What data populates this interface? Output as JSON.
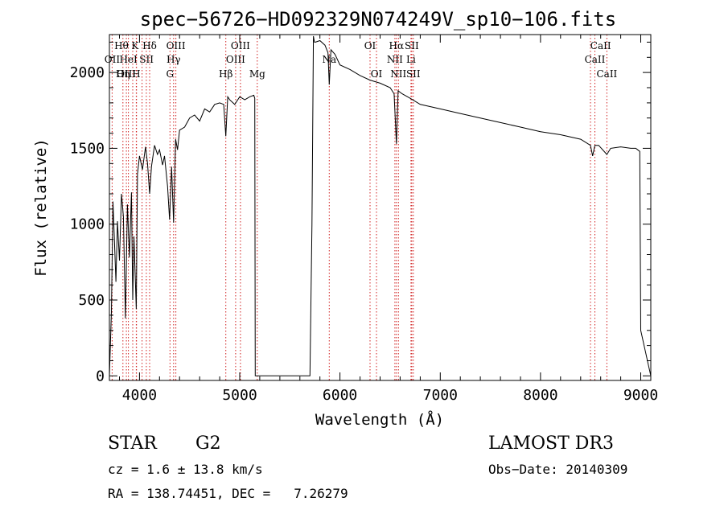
{
  "chart_data": {
    "type": "line",
    "title": "spec−56726−HD092329N074249V_sp10−106.fits",
    "xlabel": "Wavelength (Å)",
    "ylabel": "Flux (relative)",
    "xlim": [
      3700,
      9100
    ],
    "ylim": [
      -30,
      2250
    ],
    "xticks": [
      4000,
      5000,
      6000,
      7000,
      8000,
      9000
    ],
    "yticks": [
      0,
      500,
      1000,
      1500,
      2000
    ],
    "series": [
      {
        "name": "flux",
        "x": [
          3700,
          3720,
          3735,
          3750,
          3765,
          3780,
          3800,
          3820,
          3840,
          3860,
          3880,
          3900,
          3920,
          3933,
          3945,
          3968,
          3980,
          4000,
          4030,
          4060,
          4080,
          4101,
          4120,
          4150,
          4180,
          4200,
          4230,
          4250,
          4280,
          4300,
          4320,
          4340,
          4360,
          4380,
          4400,
          4450,
          4500,
          4550,
          4600,
          4650,
          4700,
          4750,
          4800,
          4840,
          4861,
          4880,
          4900,
          4950,
          5000,
          5050,
          5100,
          5140,
          5150,
          5155,
          5160,
          5165,
          5170,
          5175,
          5180,
          5200,
          5300,
          5500,
          5700,
          5720,
          5735,
          5745,
          5755,
          5800,
          5850,
          5880,
          5893,
          5910,
          5950,
          6000,
          6100,
          6200,
          6300,
          6400,
          6500,
          6540,
          6563,
          6580,
          6620,
          6700,
          6800,
          7000,
          7200,
          7400,
          7600,
          7800,
          8000,
          8200,
          8400,
          8498,
          8520,
          8542,
          8580,
          8662,
          8700,
          8800,
          8900,
          8950,
          8970,
          8990,
          9000,
          9100
        ],
        "values": [
          0,
          420,
          1150,
          900,
          620,
          1020,
          760,
          1200,
          1050,
          380,
          1130,
          780,
          1210,
          500,
          920,
          440,
          1330,
          1450,
          1360,
          1510,
          1400,
          1200,
          1380,
          1520,
          1460,
          1490,
          1390,
          1450,
          1250,
          1030,
          1380,
          1010,
          1560,
          1490,
          1620,
          1640,
          1700,
          1720,
          1680,
          1760,
          1740,
          1790,
          1800,
          1790,
          1580,
          1840,
          1820,
          1790,
          1840,
          1820,
          1840,
          1850,
          1830,
          0,
          0,
          0,
          0,
          0,
          0,
          0,
          0,
          0,
          0,
          1000,
          2240,
          2200,
          2200,
          2210,
          2180,
          2130,
          1920,
          2150,
          2120,
          2050,
          2020,
          1980,
          1950,
          1930,
          1900,
          1860,
          1530,
          1880,
          1860,
          1830,
          1790,
          1760,
          1730,
          1700,
          1670,
          1640,
          1610,
          1590,
          1560,
          1520,
          1450,
          1520,
          1520,
          1460,
          1500,
          1510,
          1500,
          1500,
          1490,
          1480,
          300,
          0
        ]
      }
    ],
    "line_x": [
      3727,
      3835,
      3869,
      3889,
      3933,
      3968,
      3970,
      4026,
      4068,
      4101,
      4304,
      4340,
      4363,
      4861,
      4959,
      5007,
      5175,
      5893,
      6300,
      6364,
      6548,
      6563,
      6583,
      6708,
      6716,
      6731,
      8498,
      8542,
      8662
    ],
    "line_labels": [
      {
        "text": "Hθ",
        "wave": 3820,
        "row": 1
      },
      {
        "text": "K",
        "wave": 3955,
        "row": 1
      },
      {
        "text": "Hδ",
        "wave": 4101,
        "row": 1
      },
      {
        "text": "OIII",
        "wave": 4363,
        "row": 1
      },
      {
        "text": "OIII",
        "wave": 5007,
        "row": 1
      },
      {
        "text": "OI",
        "wave": 6300,
        "row": 1
      },
      {
        "text": "Hα",
        "wave": 6563,
        "row": 1
      },
      {
        "text": "SII",
        "wave": 6716,
        "row": 1
      },
      {
        "text": "CaII",
        "wave": 8600,
        "row": 1
      },
      {
        "text": "OII",
        "wave": 3727,
        "row": 2
      },
      {
        "text": "HeI",
        "wave": 3889,
        "row": 2
      },
      {
        "text": "SII",
        "wave": 4070,
        "row": 2
      },
      {
        "text": "Hγ",
        "wave": 4340,
        "row": 2
      },
      {
        "text": "OIII",
        "wave": 4959,
        "row": 2
      },
      {
        "text": "Na",
        "wave": 5893,
        "row": 2
      },
      {
        "text": "NII",
        "wave": 6548,
        "row": 2
      },
      {
        "text": "Li",
        "wave": 6708,
        "row": 2
      },
      {
        "text": "CaII",
        "wave": 8542,
        "row": 2
      },
      {
        "text": "OIII",
        "wave": 3869,
        "row": 3
      },
      {
        "text": "Hη",
        "wave": 3835,
        "row": 3
      },
      {
        "text": "H",
        "wave": 3968,
        "row": 3
      },
      {
        "text": "G",
        "wave": 4304,
        "row": 3
      },
      {
        "text": "Hβ",
        "wave": 4861,
        "row": 3
      },
      {
        "text": "Mg",
        "wave": 5175,
        "row": 3
      },
      {
        "text": "OI",
        "wave": 6364,
        "row": 3
      },
      {
        "text": "NII",
        "wave": 6583,
        "row": 3
      },
      {
        "text": "SII",
        "wave": 6731,
        "row": 3
      },
      {
        "text": "CaII",
        "wave": 8662,
        "row": 3
      }
    ]
  },
  "info": {
    "class_label": "STAR",
    "subclass": "G2",
    "cz": "cz = 1.6 ± 13.8 km/s",
    "radec": "RA = 138.74451, DEC =   7.26279",
    "survey": "LAMOST DR3",
    "obs_date": "Obs−Date: 20140309"
  }
}
